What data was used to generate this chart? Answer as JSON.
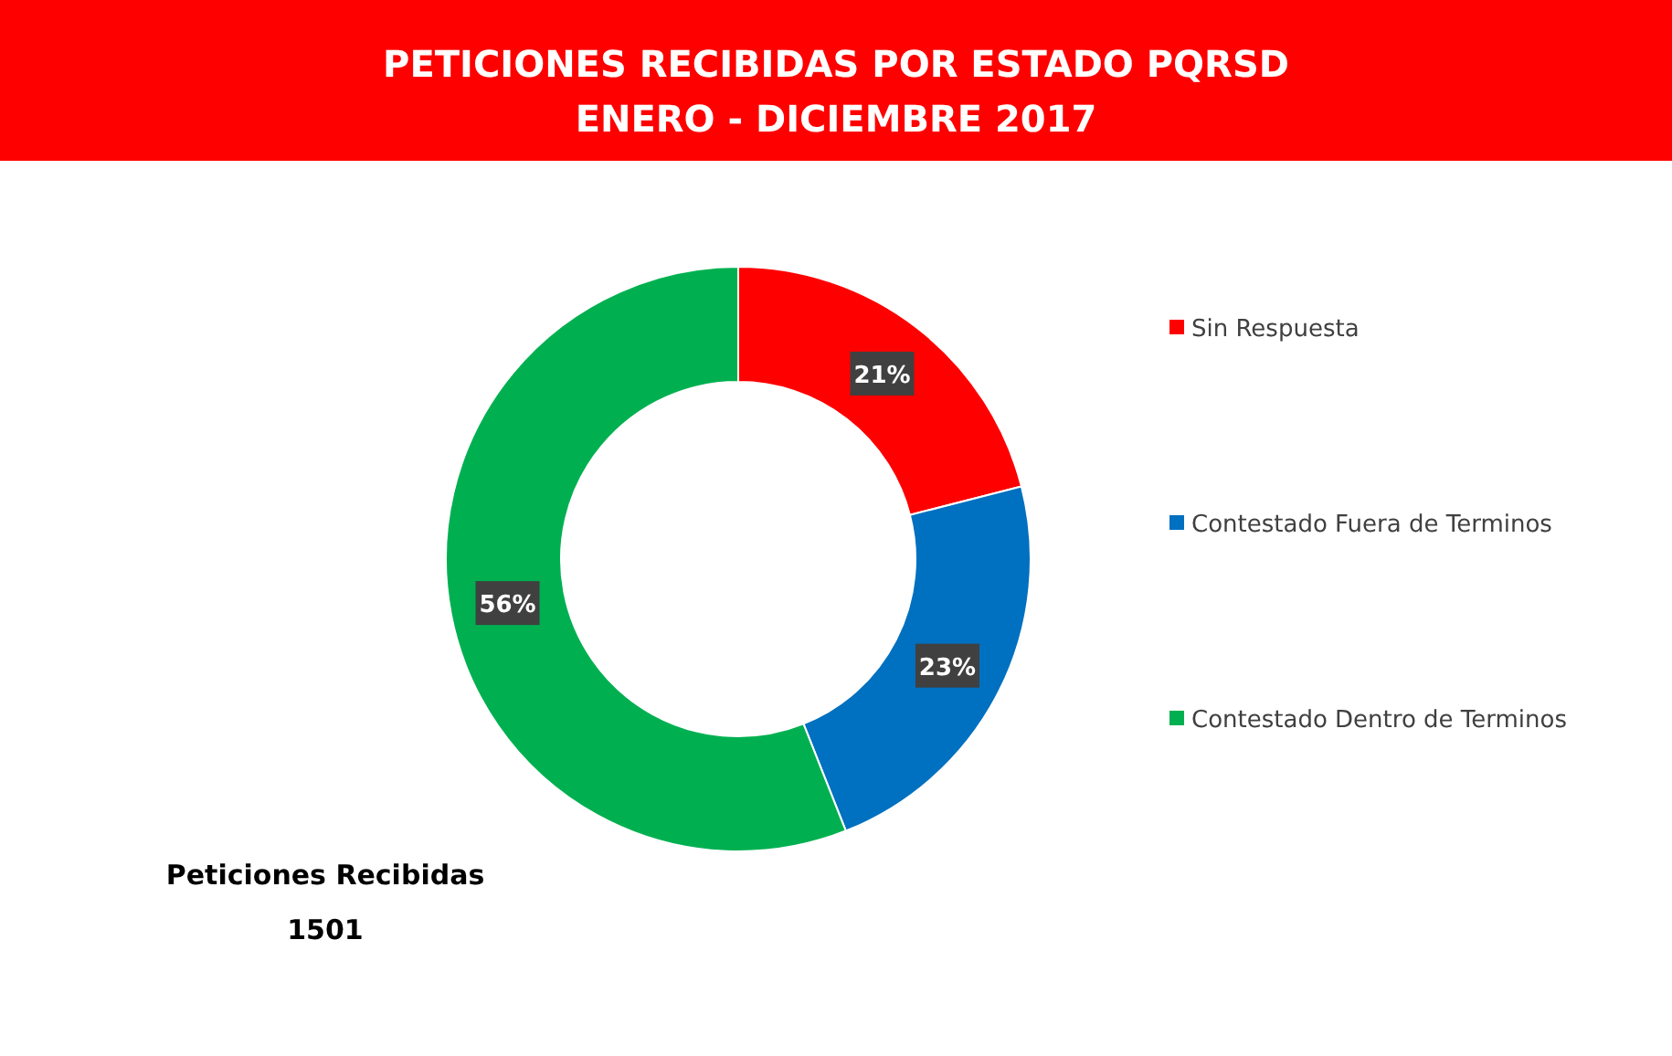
{
  "chart_data": {
    "type": "donut",
    "title": "PETICIONES RECIBIDAS POR ESTADO PQRSD",
    "subtitle": "ENERO - DICIEMBRE 2017",
    "categories": [
      "Sin Respuesta",
      "Contestado Fuera de Terminos",
      "Contestado Dentro de Terminos"
    ],
    "values": [
      21,
      23,
      56
    ],
    "colors": [
      "#ff0000",
      "#0070c0",
      "#00b050"
    ],
    "value_labels": [
      "21%",
      "23%",
      "56%"
    ],
    "legend": "right",
    "annotations": [
      "Peticiones Recibidas",
      "1501"
    ]
  }
}
